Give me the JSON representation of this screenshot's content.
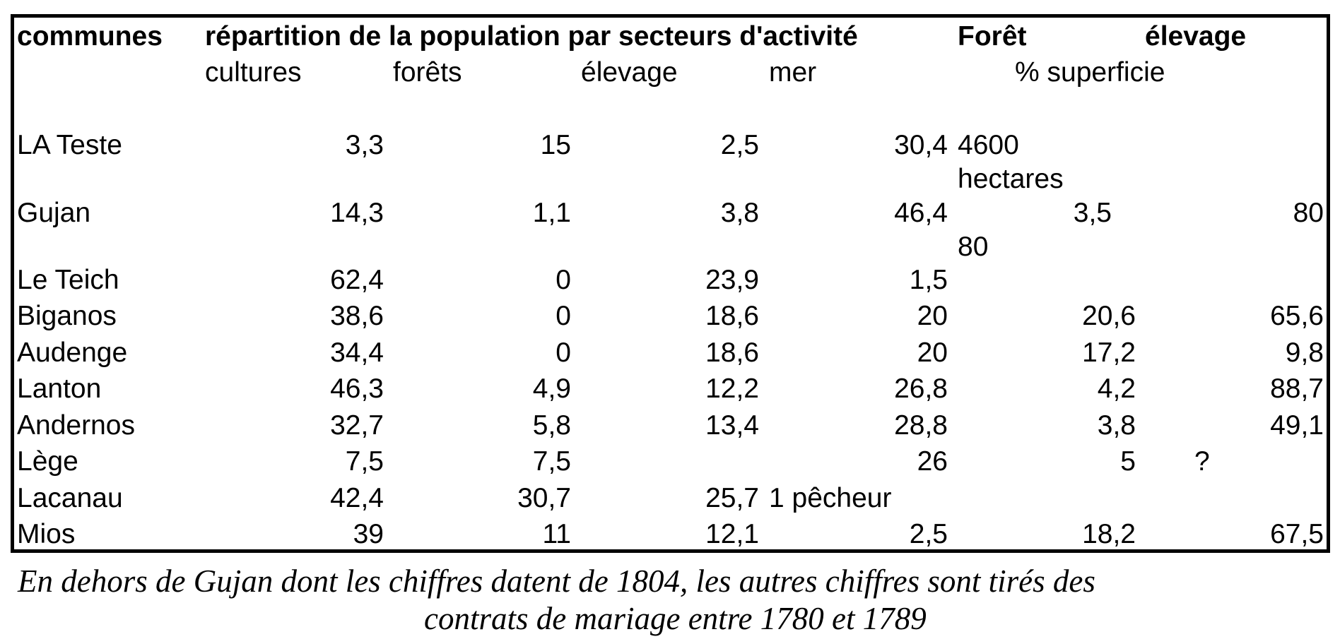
{
  "header": {
    "communes": "communes",
    "repartition": "répartition de la population par secteurs d'activité",
    "foret": "Forêt",
    "elevage": "élevage",
    "cultures": "cultures",
    "forets": "forêts",
    "elevage_sub": "élevage",
    "mer": "mer",
    "pct_superficie": "% superficie"
  },
  "rows": [
    {
      "commune": "LA Teste",
      "cultures": "3,3",
      "forets": "15",
      "elevage": "2,5",
      "mer": "30,4",
      "foret_note": [
        "4600",
        "hectares"
      ],
      "foret": "",
      "elevage_pct": ""
    },
    {
      "commune": "Gujan",
      "cultures": "14,3",
      "forets": "1,1",
      "elevage": "3,8",
      "mer": "46,4",
      "foret": "3,5",
      "elevage_pct": "80",
      "extra": "80"
    },
    {
      "commune": "Le Teich",
      "cultures": "62,4",
      "forets": "0",
      "elevage": "23,9",
      "mer": "1,5",
      "foret": "",
      "elevage_pct": ""
    },
    {
      "commune": "Biganos",
      "cultures": "38,6",
      "forets": "0",
      "elevage": "18,6",
      "mer": "20",
      "foret": "20,6",
      "elevage_pct": "65,6"
    },
    {
      "commune": "Audenge",
      "cultures": "34,4",
      "forets": "0",
      "elevage": "18,6",
      "mer": "20",
      "foret": "17,2",
      "elevage_pct": "9,8"
    },
    {
      "commune": "Lanton",
      "cultures": "46,3",
      "forets": "4,9",
      "elevage": "12,2",
      "mer": "26,8",
      "foret": "4,2",
      "elevage_pct": "88,7"
    },
    {
      "commune": "Andernos",
      "cultures": "32,7",
      "forets": "5,8",
      "elevage": "13,4",
      "mer": "28,8",
      "foret": "3,8",
      "elevage_pct": "49,1"
    },
    {
      "commune": "Lège",
      "cultures": "7,5",
      "forets": "7,5",
      "elevage": "",
      "mer": "26",
      "foret": "5",
      "elevage_pct": "?"
    },
    {
      "commune": "Lacanau",
      "cultures": "42,4",
      "forets": "30,7",
      "elevage": "25,7",
      "mer": "1 pêcheur",
      "foret": "",
      "elevage_pct": ""
    },
    {
      "commune": "Mios",
      "cultures": "39",
      "forets": "11",
      "elevage": "12,1",
      "mer": "2,5",
      "foret": "18,2",
      "elevage_pct": "67,5"
    }
  ],
  "footnote": {
    "line1": "En dehors de Gujan dont les chiffres datent de 1804,  les autres chiffres sont tirés des",
    "line2": "contrats de mariage entre 1780 et 1789"
  }
}
